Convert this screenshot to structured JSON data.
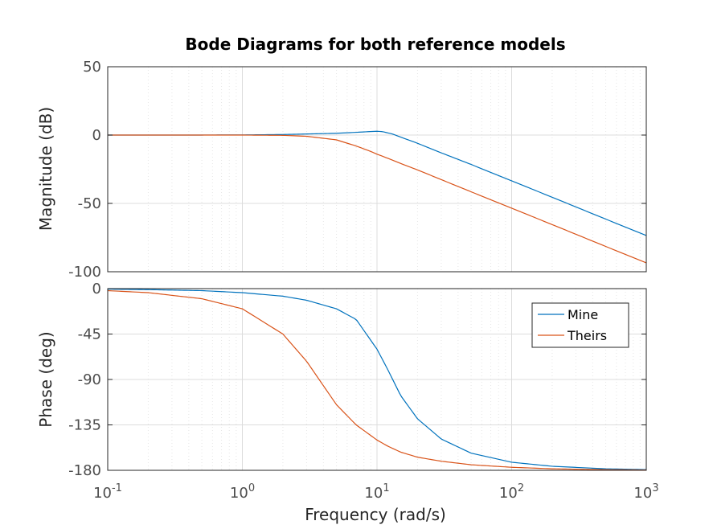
{
  "chart_data": {
    "type": "line",
    "title": "Bode Diagrams for both reference models",
    "xlabel": "Frequency  (rad/s)",
    "xscale": "log",
    "xlim": [
      0.1,
      1000
    ],
    "x_tick_labels": [
      {
        "base": "10",
        "exp": "-1"
      },
      {
        "base": "10",
        "exp": "0"
      },
      {
        "base": "10",
        "exp": "1"
      },
      {
        "base": "10",
        "exp": "2"
      },
      {
        "base": "10",
        "exp": "3"
      }
    ],
    "grid": true,
    "colors": {
      "Mine": "#0072BD",
      "Theirs": "#D95319"
    },
    "magnitude_plot": {
      "ylabel": "Magnitude (dB)",
      "ylim": [
        -100,
        50
      ],
      "yticks": [
        "50",
        "0",
        "-50",
        "-100"
      ],
      "x": [
        0.1,
        0.2,
        0.5,
        1,
        2,
        3,
        5,
        7,
        9,
        10,
        11,
        13,
        15,
        20,
        30,
        50,
        100,
        200,
        500,
        1000
      ],
      "series": [
        {
          "name": "Mine",
          "values": [
            0,
            0,
            0.02,
            0.1,
            0.4,
            0.8,
            1.3,
            2.0,
            2.6,
            2.8,
            2.5,
            0.8,
            -1.5,
            -6,
            -13,
            -21.5,
            -33.5,
            -45.5,
            -61.5,
            -73.5
          ]
        },
        {
          "name": "Theirs",
          "values": [
            0,
            0,
            0,
            0,
            -0.2,
            -0.9,
            -3.5,
            -8.0,
            -12.0,
            -14.0,
            -15.5,
            -18.3,
            -20.8,
            -25.5,
            -32.6,
            -41.5,
            -53.5,
            -65.5,
            -81.5,
            -93.5
          ]
        }
      ]
    },
    "phase_plot": {
      "ylabel": "Phase (deg)",
      "ylim": [
        -180,
        0
      ],
      "yticks": [
        "0",
        "-45",
        "-90",
        "-135",
        "-180"
      ],
      "x": [
        0.1,
        0.2,
        0.5,
        1,
        2,
        3,
        5,
        7,
        10,
        12,
        15,
        20,
        30,
        50,
        100,
        200,
        500,
        1000
      ],
      "series": [
        {
          "name": "Mine",
          "values": [
            -0.5,
            -1,
            -2,
            -4,
            -7.5,
            -11.5,
            -20,
            -30.5,
            -60,
            -80,
            -106,
            -129,
            -149,
            -163,
            -172,
            -176,
            -178.5,
            -179.3
          ]
        },
        {
          "name": "Theirs",
          "values": [
            -2,
            -4,
            -10,
            -20,
            -45,
            -72,
            -115,
            -135,
            -150,
            -156,
            -162,
            -167,
            -171,
            -174.5,
            -177,
            -178.5,
            -179.4,
            -179.7
          ]
        }
      ]
    },
    "legend": {
      "placement": "top-right of phase plot",
      "entries": [
        "Mine",
        "Theirs"
      ]
    }
  }
}
